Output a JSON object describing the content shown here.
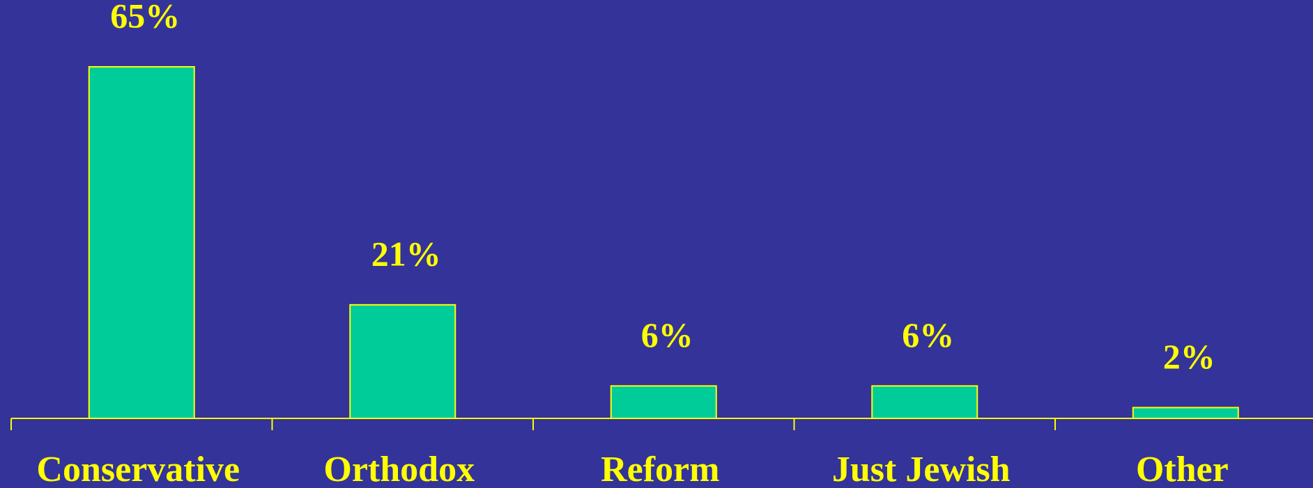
{
  "chart_data": {
    "type": "bar",
    "categories": [
      "Conservative",
      "Orthodox",
      "Reform",
      "Just Jewish",
      "Other"
    ],
    "values": [
      65,
      21,
      6,
      6,
      2
    ],
    "value_labels": [
      "65%",
      "21%",
      "6%",
      "6%",
      "2%"
    ],
    "color": "#00cc99"
  }
}
